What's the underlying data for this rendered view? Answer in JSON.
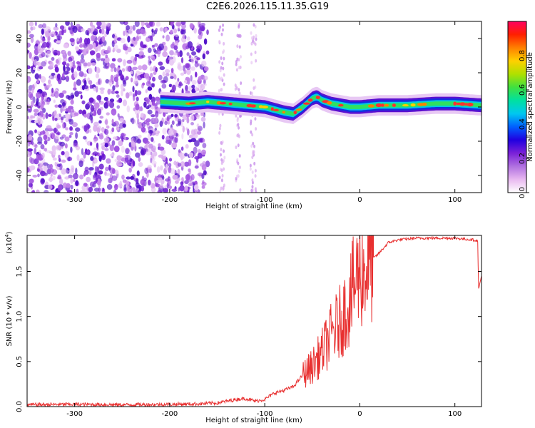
{
  "title": "C2E6.2026.115.11.35.G19",
  "chart_data": [
    {
      "type": "heatmap",
      "xlabel": "Height of straight line (km)",
      "ylabel": "Frequency (Hz)",
      "xlim": [
        -350,
        128
      ],
      "ylim": [
        -50,
        50
      ],
      "xticks": [
        -300,
        -200,
        -100,
        0,
        100
      ],
      "yticks": [
        -40,
        -20,
        0,
        20,
        40
      ],
      "colorbar": {
        "label": "Normalized spectral amplitude",
        "range": [
          0,
          1
        ],
        "ticks": [
          "0.0",
          "0.2",
          "0.4",
          "0.6",
          "0.8"
        ],
        "colors": [
          "#ffffff",
          "#e8b8f0",
          "#b070e0",
          "#7a20d8",
          "#2000e0",
          "#0060ff",
          "#00c8f0",
          "#00e0a0",
          "#40e040",
          "#b0e000",
          "#ffd000",
          "#ff8000",
          "#ff2000",
          "#ff0060"
        ]
      },
      "ridge": {
        "x": [
          -210,
          -180,
          -160,
          -140,
          -120,
          -100,
          -80,
          -70,
          -60,
          -50,
          -45,
          -40,
          -30,
          -20,
          -10,
          0,
          20,
          50,
          80,
          100,
          128
        ],
        "y": [
          3,
          2,
          3,
          2,
          1,
          0,
          -3,
          -4,
          0,
          5,
          6,
          4,
          2,
          1,
          0,
          0,
          1,
          1,
          2,
          2,
          1
        ]
      },
      "noise_region_x": [
        -350,
        -160
      ]
    },
    {
      "type": "line",
      "xlabel": "Height of straight line (km)",
      "ylabel": "SNR (10 * v/v)",
      "y_multiplier": "(x10",
      "y_exponent": "4",
      "xlim": [
        -350,
        128
      ],
      "ylim": [
        0,
        19000
      ],
      "xticks": [
        -300,
        -200,
        -100,
        0,
        100
      ],
      "yticks": [
        "0.0",
        "0.5",
        "1.0",
        "1.5"
      ],
      "yticks_values": [
        0,
        5000,
        10000,
        15000
      ],
      "series": [
        {
          "color": "#e83030",
          "x": [
            -350,
            -300,
            -250,
            -200,
            -170,
            -150,
            -140,
            -130,
            -120,
            -110,
            -100,
            -90,
            -80,
            -70,
            -60,
            -50,
            -40,
            -30,
            -20,
            -10,
            0,
            5,
            10,
            20,
            30,
            40,
            50,
            60,
            80,
            100,
            110,
            120,
            124,
            125,
            128
          ],
          "y": [
            200,
            250,
            200,
            250,
            300,
            400,
            600,
            800,
            900,
            600,
            800,
            1500,
            1800,
            2200,
            3500,
            4500,
            6000,
            8000,
            9500,
            12000,
            15500,
            15000,
            16000,
            17000,
            18200,
            18500,
            18600,
            18700,
            18700,
            18700,
            18600,
            18500,
            18400,
            13000,
            14500
          ]
        }
      ]
    }
  ]
}
